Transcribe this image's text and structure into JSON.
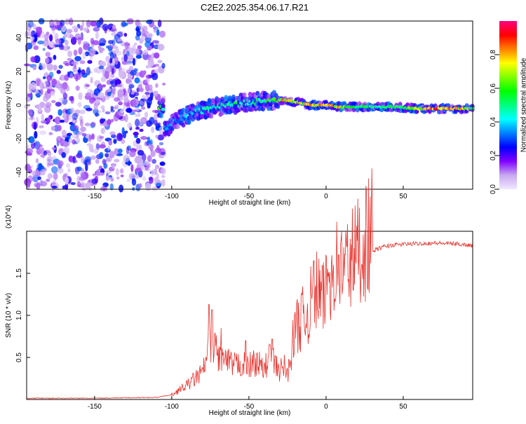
{
  "title": "C2E2.2025.354.06.17.R21",
  "chart_data": [
    {
      "type": "heatmap",
      "name": "spectrogram",
      "xlabel": "Height of straight line (km)",
      "ylabel": "Frequency (Hz)",
      "xlim": [
        -194,
        95
      ],
      "ylim": [
        -50,
        50
      ],
      "xticks": [
        -150,
        -100,
        -50,
        0,
        50
      ],
      "yticks": [
        -40,
        -20,
        0,
        20,
        40
      ],
      "colorbar": {
        "label": "Normalized spectral amplitude",
        "range": [
          0,
          1
        ],
        "ticks": [
          "0.0",
          "0.2",
          "0.4",
          "0.6",
          "0.8"
        ],
        "colormap": [
          "#f0e8ff",
          "#c8a8f0",
          "#8000ff",
          "#0000ff",
          "#0080ff",
          "#00ffff",
          "#00ff80",
          "#00ff00",
          "#80ff00",
          "#ffff00",
          "#ff8000",
          "#ff0000",
          "#ff0080"
        ]
      },
      "ridge": [
        {
          "x": -105,
          "y": -15,
          "amp": 0.35
        },
        {
          "x": -95,
          "y": -8,
          "amp": 0.4
        },
        {
          "x": -85,
          "y": -4,
          "amp": 0.45
        },
        {
          "x": -75,
          "y": -2,
          "amp": 0.5
        },
        {
          "x": -65,
          "y": 0,
          "amp": 0.5
        },
        {
          "x": -55,
          "y": 1,
          "amp": 0.55
        },
        {
          "x": -45,
          "y": 2,
          "amp": 0.55
        },
        {
          "x": -35,
          "y": 3,
          "amp": 0.6
        },
        {
          "x": -28,
          "y": 3,
          "amp": 0.85
        },
        {
          "x": -20,
          "y": 2,
          "amp": 0.75
        },
        {
          "x": -10,
          "y": 0,
          "amp": 0.85
        },
        {
          "x": 0,
          "y": 0,
          "amp": 0.85
        },
        {
          "x": 10,
          "y": -1,
          "amp": 0.8
        },
        {
          "x": 20,
          "y": -1,
          "amp": 0.6
        },
        {
          "x": 40,
          "y": -1,
          "amp": 0.55
        },
        {
          "x": 60,
          "y": -2,
          "amp": 0.7
        },
        {
          "x": 70,
          "y": -2,
          "amp": 0.95
        },
        {
          "x": 85,
          "y": -2,
          "amp": 0.9
        },
        {
          "x": 95,
          "y": -2,
          "amp": 0.6
        }
      ]
    },
    {
      "type": "line",
      "name": "snr",
      "xlabel": "Height of straight line (km)",
      "ylabel": "SNR (10 * v/v)",
      "yscale_label": "(x10^4)",
      "xlim": [
        -194,
        95
      ],
      "ylim": [
        0,
        2.0
      ],
      "xticks": [
        -150,
        -100,
        -50,
        0,
        50
      ],
      "yticks": [
        0.5,
        1.0,
        1.5
      ],
      "ytick_labels": [
        "0.5",
        "1.0",
        "1.5"
      ],
      "color": "#e8302a",
      "x": [
        -194,
        -150,
        -110,
        -100,
        -95,
        -90,
        -85,
        -80,
        -76,
        -74,
        -70,
        -65,
        -60,
        -55,
        -50,
        -45,
        -40,
        -36,
        -33,
        -30,
        -27,
        -25,
        -22,
        -20,
        -18,
        -15,
        -12,
        -10,
        -8,
        -5,
        -2,
        0,
        3,
        6,
        10,
        15,
        18,
        20,
        24,
        28,
        32,
        38,
        45,
        55,
        70,
        85,
        95
      ],
      "y": [
        0.01,
        0.01,
        0.02,
        0.05,
        0.1,
        0.15,
        0.22,
        0.28,
        0.5,
        0.7,
        0.45,
        0.4,
        0.35,
        0.38,
        0.35,
        0.4,
        0.3,
        0.5,
        0.35,
        0.3,
        0.35,
        0.25,
        0.55,
        0.75,
        0.8,
        0.85,
        0.9,
        1.0,
        1.1,
        1.15,
        1.0,
        1.2,
        1.35,
        1.4,
        1.35,
        1.45,
        1.5,
        1.55,
        1.65,
        1.72,
        1.78,
        1.82,
        1.84,
        1.85,
        1.86,
        1.85,
        1.83
      ],
      "peaks": [
        {
          "x": -76,
          "y": 1.13
        },
        {
          "x": -68,
          "y": 0.85
        },
        {
          "x": -52,
          "y": 0.7
        },
        {
          "x": -35,
          "y": 0.72
        },
        {
          "x": -18,
          "y": 1.15
        },
        {
          "x": -8,
          "y": 1.65
        },
        {
          "x": 8,
          "y": 1.72
        }
      ]
    }
  ]
}
